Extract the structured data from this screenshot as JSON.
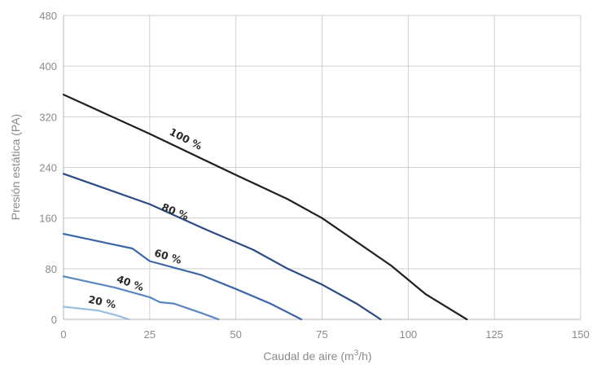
{
  "chart_data": {
    "type": "line",
    "title": "",
    "xlabel": "Caudal de aire (m",
    "xlabel_sup": "3",
    "xlabel_end": "/h)",
    "ylabel": "Presión estática (PA)",
    "xlim": [
      0,
      150
    ],
    "ylim": [
      0,
      480
    ],
    "xticks": [
      "0",
      "25",
      "50",
      "75",
      "100",
      "125",
      "150"
    ],
    "yticks": [
      "0",
      "80",
      "160",
      "240",
      "320",
      "400",
      "480"
    ],
    "grid": true,
    "series": [
      {
        "name": "100 %",
        "color": "#1f1f24",
        "points": [
          [
            0,
            355
          ],
          [
            25,
            293
          ],
          [
            50,
            228
          ],
          [
            65,
            190
          ],
          [
            75,
            160
          ],
          [
            95,
            85
          ],
          [
            105,
            40
          ],
          [
            117,
            0
          ]
        ]
      },
      {
        "name": "80 %",
        "color": "#2c4a85",
        "points": [
          [
            0,
            230
          ],
          [
            25,
            182
          ],
          [
            40,
            145
          ],
          [
            55,
            110
          ],
          [
            65,
            80
          ],
          [
            75,
            55
          ],
          [
            85,
            25
          ],
          [
            92,
            0
          ]
        ]
      },
      {
        "name": "60 %",
        "color": "#3d66a8",
        "points": [
          [
            0,
            135
          ],
          [
            20,
            112
          ],
          [
            25,
            92
          ],
          [
            40,
            70
          ],
          [
            50,
            48
          ],
          [
            60,
            25
          ],
          [
            69,
            0
          ]
        ]
      },
      {
        "name": "40 %",
        "color": "#5a86c2",
        "points": [
          [
            0,
            68
          ],
          [
            15,
            50
          ],
          [
            25,
            35
          ],
          [
            28,
            27
          ],
          [
            32,
            25
          ],
          [
            40,
            10
          ],
          [
            45,
            0
          ]
        ]
      },
      {
        "name": "20 %",
        "color": "#9bbde0",
        "points": [
          [
            0,
            20
          ],
          [
            10,
            14
          ],
          [
            15,
            7
          ],
          [
            19,
            0
          ]
        ]
      }
    ]
  }
}
